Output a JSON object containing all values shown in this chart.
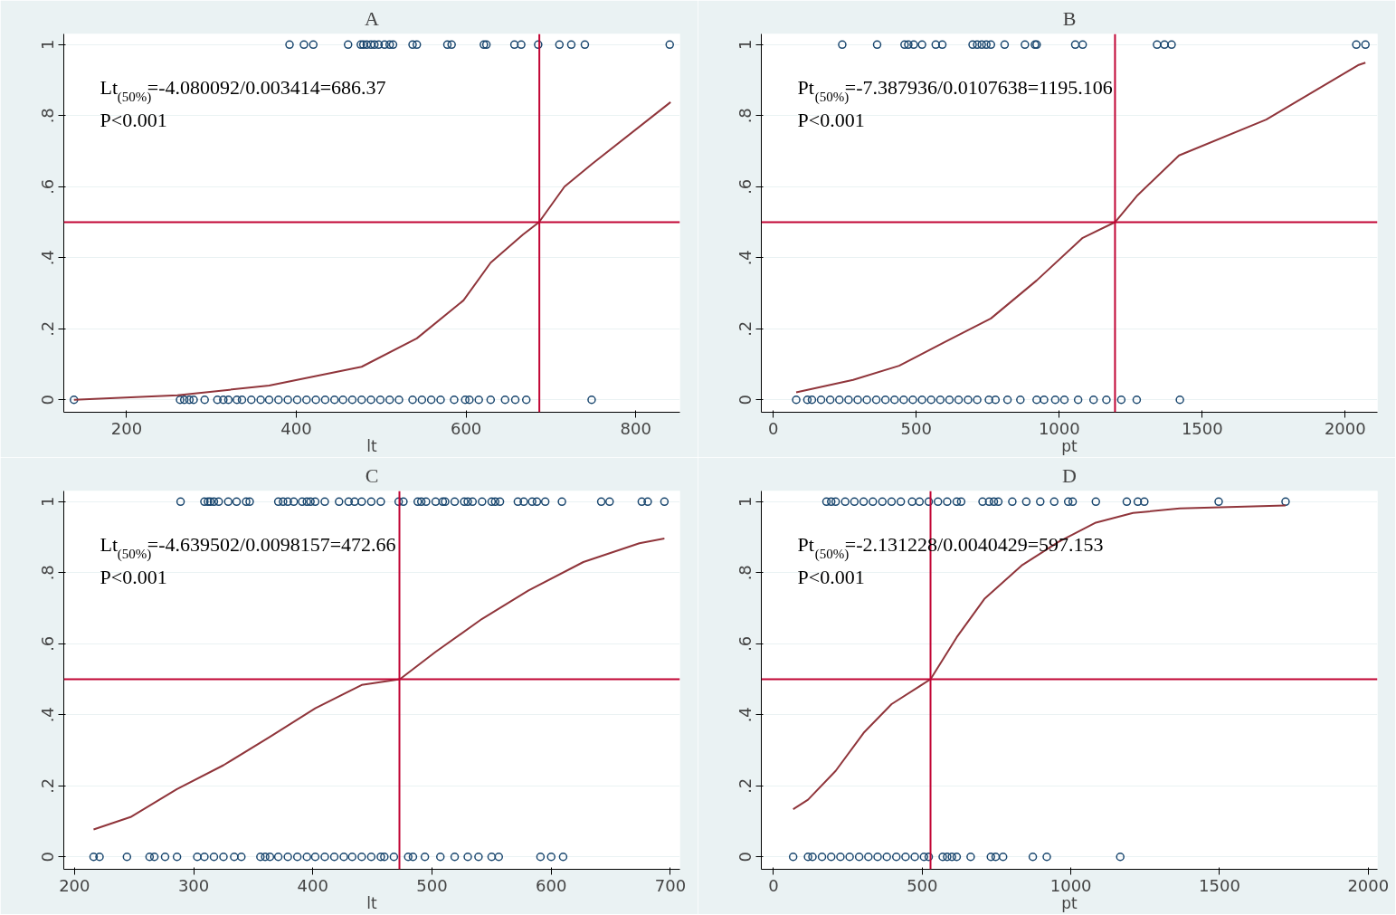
{
  "chart_data": [
    {
      "type": "scatter",
      "title": "A",
      "xlabel": "lt",
      "xlim": [
        126,
        852
      ],
      "xticks": [
        200,
        400,
        600,
        800
      ],
      "ylim": [
        -0.035,
        1.03
      ],
      "yticks": [
        {
          "value": 0,
          "label": "0"
        },
        {
          "value": 0.2,
          "label": ".2"
        },
        {
          "value": 0.4,
          "label": ".4"
        },
        {
          "value": 0.6,
          "label": ".6"
        },
        {
          "value": 0.8,
          "label": ".8"
        },
        {
          "value": 1,
          "label": "1"
        }
      ],
      "grid": "y",
      "annotations": [
        "Lt$_{(50%)}$=-4.080092/0.003414=686.37",
        "P<0.001"
      ],
      "ref_lines": [
        {
          "axis": "y",
          "value": 0.5,
          "color": "#c10534"
        },
        {
          "axis": "x",
          "value": 686.37,
          "color": "#c10534"
        }
      ],
      "series": [
        {
          "marker": "circle",
          "color": "#1a476f",
          "x": [
            392,
            409,
            420,
            461,
            476,
            479,
            483,
            488,
            492,
            497,
            504,
            510,
            514,
            537,
            542,
            578,
            583,
            621,
            624,
            657,
            665,
            685,
            710,
            724,
            740,
            840
          ],
          "values": [
            1,
            1,
            1,
            1,
            1,
            1,
            1,
            1,
            1,
            1,
            1,
            1,
            1,
            1,
            1,
            1,
            1,
            1,
            1,
            1,
            1,
            1,
            1,
            1,
            1,
            1
          ]
        },
        {
          "marker": "circle",
          "color": "#1a476f",
          "x": [
            138,
            263,
            268,
            274,
            279,
            292,
            307,
            314,
            320,
            330,
            336,
            347,
            358,
            368,
            379,
            390,
            401,
            412,
            423,
            434,
            445,
            455,
            466,
            477,
            488,
            499,
            510,
            521,
            537,
            548,
            559,
            570,
            586,
            599,
            604,
            615,
            629,
            646,
            658,
            671,
            748
          ],
          "values": [
            0,
            0,
            0,
            0,
            0,
            0,
            0,
            0,
            0,
            0,
            0,
            0,
            0,
            0,
            0,
            0,
            0,
            0,
            0,
            0,
            0,
            0,
            0,
            0,
            0,
            0,
            0,
            0,
            0,
            0,
            0,
            0,
            0,
            0,
            0,
            0,
            0,
            0,
            0,
            0,
            0
          ]
        },
        {
          "type": "line",
          "color": "#90353b",
          "x": [
            138,
            260,
            368,
            477,
            542,
            597,
            629,
            667,
            686,
            716,
            749,
            841
          ],
          "values": [
            0,
            0.013,
            0.04,
            0.093,
            0.173,
            0.28,
            0.386,
            0.465,
            0.5,
            0.6,
            0.665,
            0.838
          ]
        }
      ]
    },
    {
      "type": "scatter",
      "title": "B",
      "xlabel": "pt",
      "xlim": [
        -42,
        2113
      ],
      "xticks": [
        0,
        500,
        1000,
        1500,
        2000
      ],
      "ylim": [
        -0.035,
        1.03
      ],
      "yticks": [
        {
          "value": 0,
          "label": "0"
        },
        {
          "value": 0.2,
          "label": ".2"
        },
        {
          "value": 0.4,
          "label": ".4"
        },
        {
          "value": 0.6,
          "label": ".6"
        },
        {
          "value": 0.8,
          "label": ".8"
        },
        {
          "value": 1,
          "label": "1"
        }
      ],
      "grid": "y",
      "annotations": [
        "Pt$_{(50%)}$=-7.387936/0.0107638=1195.106",
        "P<0.001"
      ],
      "ref_lines": [
        {
          "axis": "y",
          "value": 0.5,
          "color": "#c10534"
        },
        {
          "axis": "x",
          "value": 1195.106,
          "color": "#c10534"
        }
      ],
      "series": [
        {
          "marker": "circle",
          "color": "#1a476f",
          "x": [
            241,
            363,
            459,
            472,
            491,
            520,
            568,
            591,
            697,
            713,
            729,
            745,
            761,
            809,
            880,
            915,
            921,
            1056,
            1082,
            1342,
            1368,
            1393,
            2039,
            2071
          ],
          "values": [
            1,
            1,
            1,
            1,
            1,
            1,
            1,
            1,
            1,
            1,
            1,
            1,
            1,
            1,
            1,
            1,
            1,
            1,
            1,
            1,
            1,
            1,
            1,
            1
          ]
        },
        {
          "marker": "circle",
          "color": "#1a476f",
          "x": [
            80,
            119,
            135,
            167,
            199,
            231,
            263,
            295,
            327,
            360,
            392,
            424,
            456,
            488,
            520,
            552,
            584,
            616,
            648,
            681,
            713,
            754,
            777,
            819,
            864,
            921,
            947,
            986,
            1018,
            1066,
            1120,
            1165,
            1217,
            1271,
            1422
          ],
          "values": [
            0,
            0,
            0,
            0,
            0,
            0,
            0,
            0,
            0,
            0,
            0,
            0,
            0,
            0,
            0,
            0,
            0,
            0,
            0,
            0,
            0,
            0,
            0,
            0,
            0,
            0,
            0,
            0,
            0,
            0,
            0,
            0,
            0,
            0,
            0
          ]
        },
        {
          "type": "line",
          "color": "#90353b",
          "x": [
            80,
            279,
            440,
            600,
            761,
            921,
            1082,
            1195,
            1274,
            1419,
            1724,
            2045,
            2071
          ],
          "values": [
            0.021,
            0.056,
            0.096,
            0.163,
            0.229,
            0.336,
            0.456,
            0.5,
            0.576,
            0.688,
            0.789,
            0.942,
            0.949
          ]
        }
      ]
    },
    {
      "type": "scatter",
      "title": "C",
      "xlabel": "lt",
      "xlim": [
        191,
        708
      ],
      "xticks": [
        200,
        300,
        400,
        500,
        600,
        700
      ],
      "ylim": [
        -0.035,
        1.03
      ],
      "yticks": [
        {
          "value": 0,
          "label": "0"
        },
        {
          "value": 0.2,
          "label": ".2"
        },
        {
          "value": 0.4,
          "label": ".4"
        },
        {
          "value": 0.6,
          "label": ".6"
        },
        {
          "value": 0.8,
          "label": ".8"
        },
        {
          "value": 1,
          "label": "1"
        }
      ],
      "grid": "y",
      "annotations": [
        "Lt$_{(50%)}$=-4.639502/0.0098157=472.66",
        "P<0.001"
      ],
      "ref_lines": [
        {
          "axis": "y",
          "value": 0.5,
          "color": "#c10534"
        },
        {
          "axis": "x",
          "value": 472.66,
          "color": "#c10534"
        }
      ],
      "series": [
        {
          "marker": "circle",
          "color": "#1a476f",
          "x": [
            289,
            309,
            312,
            314,
            317,
            321,
            329,
            336,
            344,
            347,
            371,
            375,
            379,
            384,
            391,
            395,
            398,
            402,
            410,
            422,
            430,
            435,
            441,
            449,
            457,
            472,
            476,
            488,
            491,
            495,
            503,
            509,
            511,
            519,
            527,
            530,
            534,
            542,
            550,
            553,
            557,
            572,
            577,
            584,
            588,
            595,
            609,
            642,
            649,
            676,
            681,
            695
          ],
          "values": [
            1,
            1,
            1,
            1,
            1,
            1,
            1,
            1,
            1,
            1,
            1,
            1,
            1,
            1,
            1,
            1,
            1,
            1,
            1,
            1,
            1,
            1,
            1,
            1,
            1,
            1,
            1,
            1,
            1,
            1,
            1,
            1,
            1,
            1,
            1,
            1,
            1,
            1,
            1,
            1,
            1,
            1,
            1,
            1,
            1,
            1,
            1,
            1,
            1,
            1,
            1,
            1
          ]
        },
        {
          "marker": "circle",
          "color": "#1a476f",
          "x": [
            216,
            221,
            244,
            263,
            267,
            276,
            286,
            303,
            309,
            317,
            325,
            334,
            340,
            356,
            360,
            364,
            371,
            379,
            387,
            395,
            402,
            410,
            418,
            426,
            433,
            441,
            449,
            457,
            460,
            468,
            480,
            484,
            494,
            507,
            519,
            530,
            539,
            550,
            556,
            591,
            600,
            610
          ],
          "values": [
            0,
            0,
            0,
            0,
            0,
            0,
            0,
            0,
            0,
            0,
            0,
            0,
            0,
            0,
            0,
            0,
            0,
            0,
            0,
            0,
            0,
            0,
            0,
            0,
            0,
            0,
            0,
            0,
            0,
            0,
            0,
            0,
            0,
            0,
            0,
            0,
            0,
            0,
            0,
            0,
            0,
            0
          ]
        },
        {
          "type": "line",
          "color": "#90353b",
          "x": [
            216,
            247,
            286,
            325,
            364,
            402,
            441,
            473,
            503,
            542,
            581,
            627,
            674,
            695
          ],
          "values": [
            0.077,
            0.112,
            0.191,
            0.258,
            0.338,
            0.418,
            0.484,
            0.5,
            0.577,
            0.67,
            0.75,
            0.83,
            0.883,
            0.896
          ]
        }
      ]
    },
    {
      "type": "scatter",
      "title": "D",
      "xlabel": "pt",
      "xlim": [
        -41,
        2031
      ],
      "xticks": [
        0,
        500,
        1000,
        1500,
        2000
      ],
      "ylim": [
        -0.035,
        1.03
      ],
      "yticks": [
        {
          "value": 0,
          "label": "0"
        },
        {
          "value": 0.2,
          "label": ".2"
        },
        {
          "value": 0.4,
          "label": ".4"
        },
        {
          "value": 0.6,
          "label": ".6"
        },
        {
          "value": 0.8,
          "label": ".8"
        },
        {
          "value": 1,
          "label": "1"
        }
      ],
      "grid": "y",
      "annotations": [
        "Pt$_{(50%)}$=-2.131228/0.0040429=597.153",
        "P<0.001"
      ],
      "ref_lines": [
        {
          "axis": "y",
          "value": 0.5,
          "color": "#c10534"
        },
        {
          "axis": "x",
          "value": 528,
          "color": "#c10534"
        }
      ],
      "series": [
        {
          "marker": "circle",
          "color": "#1a476f",
          "x": [
            178,
            194,
            209,
            241,
            272,
            303,
            334,
            366,
            397,
            428,
            466,
            491,
            522,
            553,
            584,
            616,
            631,
            703,
            725,
            741,
            756,
            803,
            850,
            897,
            944,
            991,
            1006,
            1084,
            1188,
            1225,
            1247,
            1497,
            1722
          ],
          "values": [
            1,
            1,
            1,
            1,
            1,
            1,
            1,
            1,
            1,
            1,
            1,
            1,
            1,
            1,
            1,
            1,
            1,
            1,
            1,
            1,
            1,
            1,
            1,
            1,
            1,
            1,
            1,
            1,
            1,
            1,
            1,
            1,
            1
          ]
        },
        {
          "marker": "circle",
          "color": "#1a476f",
          "x": [
            66,
            116,
            131,
            163,
            194,
            225,
            256,
            288,
            319,
            350,
            381,
            413,
            444,
            475,
            506,
            522,
            569,
            584,
            600,
            616,
            663,
            731,
            747,
            772,
            872,
            919,
            1166
          ],
          "values": [
            0,
            0,
            0,
            0,
            0,
            0,
            0,
            0,
            0,
            0,
            0,
            0,
            0,
            0,
            0,
            0,
            0,
            0,
            0,
            0,
            0,
            0,
            0,
            0,
            0,
            0,
            0
          ]
        },
        {
          "type": "line",
          "color": "#90353b",
          "x": [
            66,
            116,
            209,
            303,
            397,
            528,
            616,
            709,
            834,
            959,
            1084,
            1209,
            1366,
            1722
          ],
          "values": [
            0.134,
            0.161,
            0.242,
            0.349,
            0.43,
            0.5,
            0.618,
            0.726,
            0.82,
            0.887,
            0.941,
            0.968,
            0.981,
            0.989
          ]
        }
      ]
    }
  ]
}
